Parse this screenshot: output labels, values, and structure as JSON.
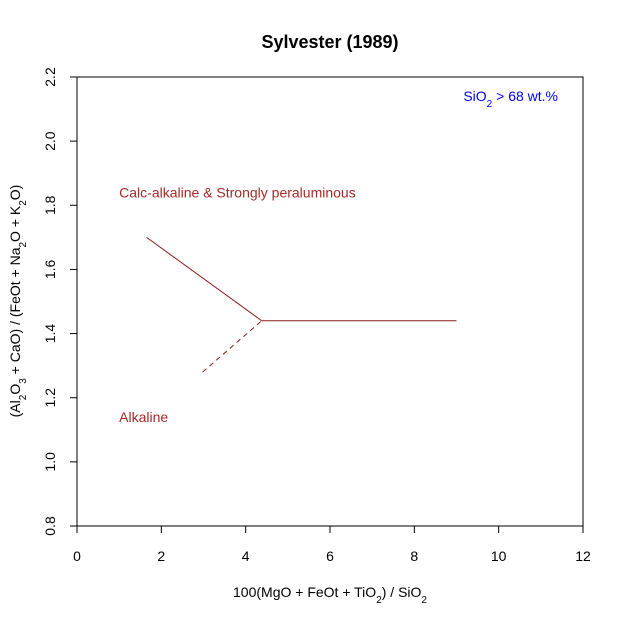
{
  "chart_data": {
    "type": "line",
    "title": "Sylvester (1989)",
    "xlabel": {
      "prefix": "100(MgO + FeOt + TiO",
      "sub": "2",
      "suffix": ") / SiO",
      "sub2": "2"
    },
    "ylabel": {
      "p1": "(Al",
      "s1": "2",
      "p2": "O",
      "s2": "3",
      "p3": " + CaO) / (FeOt + Na",
      "s3": "2",
      "p4": "O + K",
      "s4": "2",
      "p5": "O)"
    },
    "xlim": [
      0,
      12
    ],
    "ylim": [
      0.8,
      2.2
    ],
    "xticks": [
      "0",
      "2",
      "4",
      "6",
      "8",
      "10",
      "12"
    ],
    "yticks": [
      "0.8",
      "1.0",
      "1.2",
      "1.4",
      "1.6",
      "1.8",
      "2.0",
      "2.2"
    ],
    "grid": false,
    "series": [
      {
        "style": "solid",
        "color": "#8B1A1A",
        "x": [
          1.65,
          4.38
        ],
        "y": [
          1.7,
          1.44
        ]
      },
      {
        "style": "solid",
        "color": "#8B1A1A",
        "x": [
          4.38,
          9.0
        ],
        "y": [
          1.44,
          1.44
        ]
      },
      {
        "style": "dashed",
        "color": "#8B1A1A",
        "x": [
          2.98,
          4.38
        ],
        "y": [
          1.28,
          1.44
        ]
      }
    ],
    "annotations": [
      {
        "text": "Calc-alkaline & Strongly peraluminous",
        "x": 1.0,
        "y": 1.84,
        "color": "#A52A2A"
      },
      {
        "text": "Alkaline",
        "x": 1.0,
        "y": 1.14,
        "color": "#A52A2A"
      }
    ],
    "corner_note": {
      "prefix": "SiO",
      "sub": "2",
      "suffix": " > 68 wt.%",
      "color": "#0000FF"
    }
  }
}
